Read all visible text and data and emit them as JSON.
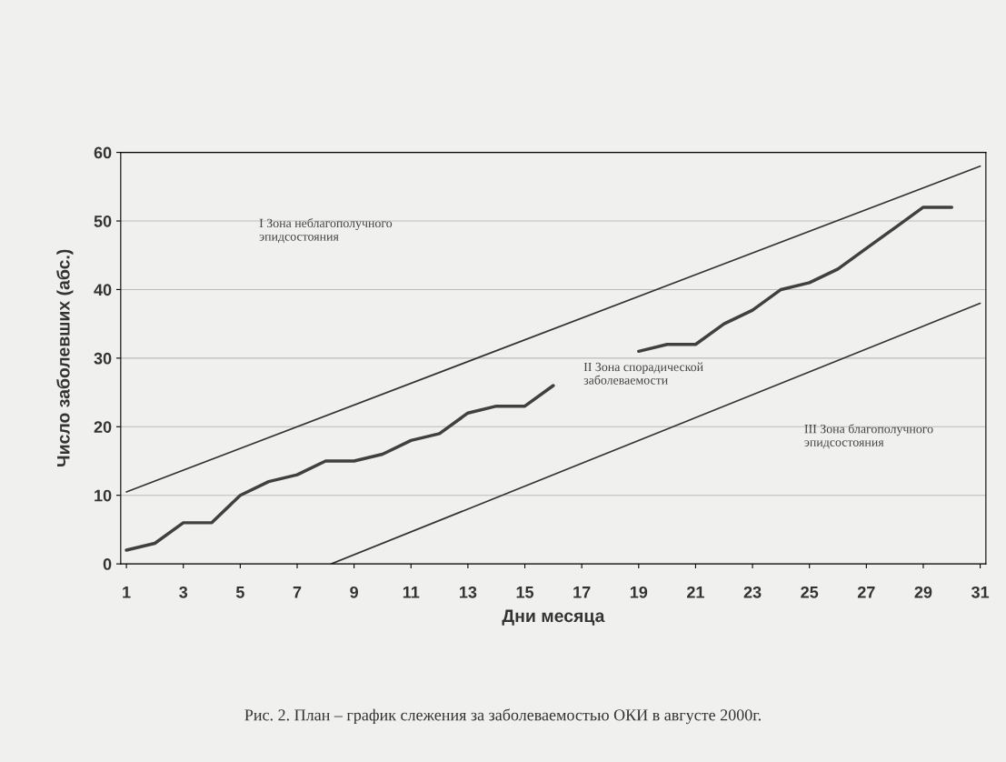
{
  "chart_data": {
    "type": "line",
    "xlabel": "Дни месяца",
    "ylabel": "Число заболевших (абс.)",
    "x": [
      1,
      2,
      3,
      4,
      5,
      6,
      7,
      8,
      9,
      10,
      11,
      12,
      13,
      14,
      15,
      16,
      17,
      18,
      19,
      20,
      21,
      22,
      23,
      24,
      25,
      26,
      27,
      28,
      29,
      30
    ],
    "series": [
      {
        "color": "#404040",
        "values": [
          2,
          3,
          6,
          6,
          10,
          12,
          13,
          15,
          15,
          16,
          18,
          19,
          22,
          23,
          23,
          26,
          null,
          null,
          31,
          32,
          32,
          35,
          37,
          40,
          41,
          43,
          46,
          49,
          52,
          52
        ]
      },
      {
        "color": "#333333",
        "x": [
          1,
          31
        ],
        "values": [
          10.5,
          58
        ]
      },
      {
        "color": "#333333",
        "x": [
          8.2,
          31
        ],
        "values": [
          0,
          38
        ]
      }
    ],
    "xlim": [
      0.8,
      31.2
    ],
    "xticks": [
      1,
      3,
      5,
      7,
      9,
      11,
      13,
      15,
      17,
      19,
      21,
      23,
      25,
      27,
      29,
      31
    ],
    "ylim": [
      0,
      60
    ],
    "yticks": [
      0,
      10,
      20,
      30,
      40,
      50,
      60
    ],
    "grid": "y",
    "legend": false,
    "annotations": [
      "I Зона неблагополучного\nэпидсостояния",
      "II Зона спорадической\nзаболеваемости",
      "III Зона благополучного\nэпидсостояния",
      "Рис. 2. План – график слежения за заболеваемостью ОКИ в августе 2000г."
    ]
  }
}
